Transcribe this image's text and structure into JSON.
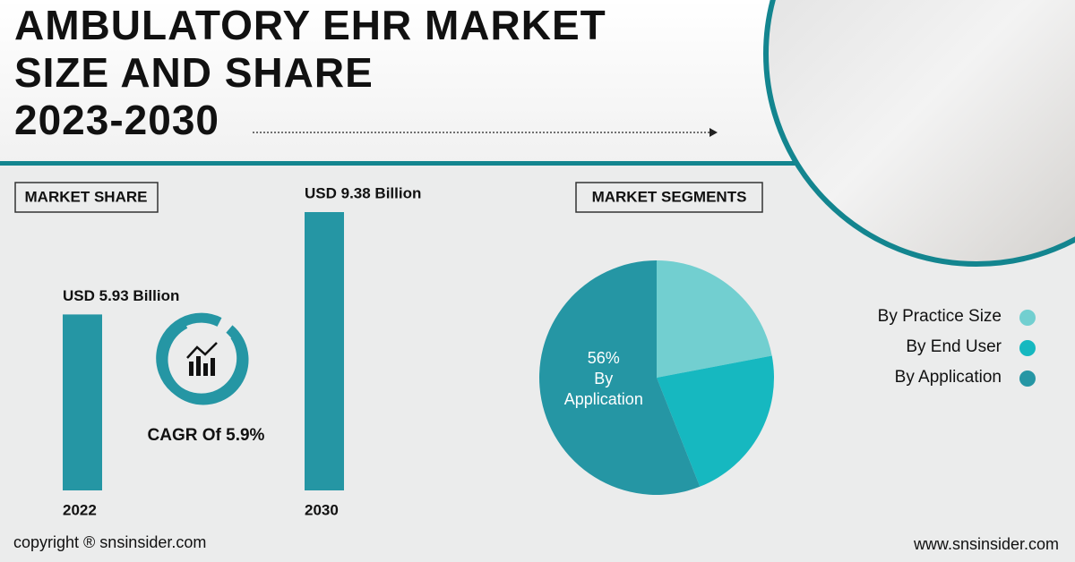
{
  "header": {
    "title_lines": [
      "AMBULATORY EHR MARKET",
      "SIZE AND SHARE",
      "2023-2030"
    ]
  },
  "sections": {
    "market_share": "MARKET SHARE",
    "market_segments": "MARKET SEGMENTS"
  },
  "cagr": "CAGR Of 5.9%",
  "footer": {
    "copyright": "copyright ® snsinsider.com",
    "website": "www.snsinsider.com"
  },
  "chart_data": [
    {
      "type": "bar",
      "categories": [
        "2022",
        "2030"
      ],
      "values": [
        5.93,
        9.38
      ],
      "value_labels": [
        "USD 5.93 Billion",
        "USD 9.38 Billion"
      ],
      "color": "#2596a4"
    },
    {
      "type": "pie",
      "categories": [
        "By Practice Size",
        "By End User",
        "By Application"
      ],
      "values": [
        22,
        22,
        56
      ],
      "value_labels": [
        null,
        null,
        "56%"
      ],
      "colors": [
        "#72cfd0",
        "#16b8c0",
        "#2596a4"
      ],
      "legend": "right"
    }
  ]
}
